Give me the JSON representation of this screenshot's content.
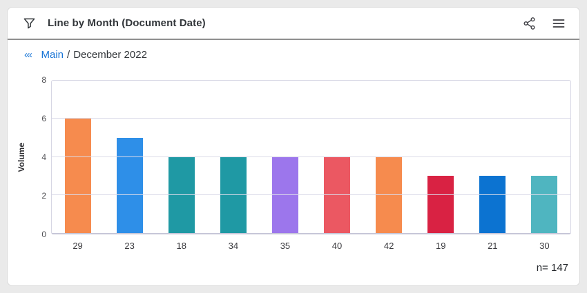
{
  "header": {
    "title": "Line by Month (Document Date)"
  },
  "breadcrumb": {
    "back_icon": "‹‹‹",
    "root_label": "Main",
    "separator": "/",
    "current_label": "December 2022"
  },
  "chart_data": {
    "type": "bar",
    "categories": [
      "29",
      "23",
      "18",
      "34",
      "35",
      "40",
      "42",
      "19",
      "21",
      "30"
    ],
    "values": [
      6,
      5,
      4,
      4,
      4,
      4,
      4,
      3,
      3,
      3
    ],
    "bar_colors": [
      "#F68B4E",
      "#2E8FE8",
      "#1F99A4",
      "#1F99A4",
      "#9C76EC",
      "#EB5862",
      "#F68B4E",
      "#D92243",
      "#0C73D1",
      "#4FB5C0"
    ],
    "title": "Line by Month (Document Date)",
    "xlabel": "",
    "ylabel": "Volume",
    "ylim": [
      0,
      8
    ],
    "yticks": [
      0,
      2,
      4,
      6,
      8
    ],
    "grid": true,
    "legend": false,
    "annotation": "n= 147"
  },
  "colors": {
    "link_blue": "#1774D6",
    "title_text": "#32363A",
    "gridline": "#DBDBE9",
    "card_background": "#FFFFFF",
    "page_background": "#EAEAEA"
  },
  "icons": {
    "filter": "funnel-icon",
    "share": "share-icon",
    "menu": "menu-icon"
  }
}
